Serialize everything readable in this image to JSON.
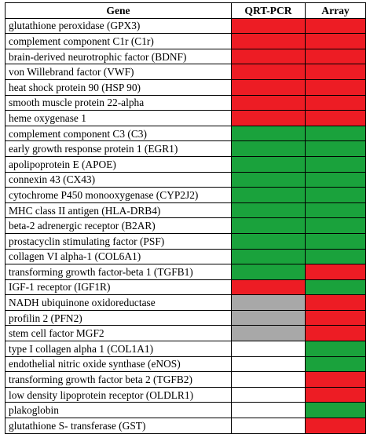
{
  "headers": {
    "gene": "Gene",
    "qrt": "QRT-PCR",
    "array": "Array"
  },
  "colors": {
    "red": "#ed1c24",
    "green": "#1aa23c",
    "gray": "#a8a8a8",
    "white": "#ffffff"
  },
  "rows": [
    {
      "gene": "glutathione peroxidase (GPX3)",
      "qrt": "red",
      "array": "red"
    },
    {
      "gene": "complement component C1r (C1r)",
      "qrt": "red",
      "array": "red"
    },
    {
      "gene": "brain-derived neurotrophic factor (BDNF)",
      "qrt": "red",
      "array": "red"
    },
    {
      "gene": "von Willebrand factor (VWF)",
      "qrt": "red",
      "array": "red"
    },
    {
      "gene": "heat shock protein 90 (HSP 90)",
      "qrt": "red",
      "array": "red"
    },
    {
      "gene": "smooth muscle protein 22-alpha",
      "qrt": "red",
      "array": "red"
    },
    {
      "gene": "heme oxygenase 1",
      "qrt": "red",
      "array": "red"
    },
    {
      "gene": "complement component C3 (C3)",
      "qrt": "green",
      "array": "green"
    },
    {
      "gene": "early growth response protein 1 (EGR1)",
      "qrt": "green",
      "array": "green"
    },
    {
      "gene": "apolipoprotein E (APOE)",
      "qrt": "green",
      "array": "green"
    },
    {
      "gene": "connexin 43 (CX43)",
      "qrt": "green",
      "array": "green"
    },
    {
      "gene": "cytochrome P450 monooxygenase (CYP2J2)",
      "qrt": "green",
      "array": "green"
    },
    {
      "gene": "MHC class II antigen (HLA-DRB4)",
      "qrt": "green",
      "array": "green"
    },
    {
      "gene": "beta-2 adrenergic receptor (B2AR)",
      "qrt": "green",
      "array": "green"
    },
    {
      "gene": "prostacyclin stimulating factor (PSF)",
      "qrt": "green",
      "array": "green"
    },
    {
      "gene": "collagen VI alpha-1 (COL6A1)",
      "qrt": "green",
      "array": "green"
    },
    {
      "gene": "transforming growth factor-beta 1 (TGFB1)",
      "qrt": "green",
      "array": "red"
    },
    {
      "gene": "IGF-1 receptor (IGF1R)",
      "qrt": "red",
      "array": "green"
    },
    {
      "gene": "NADH ubiquinone oxidoreductase",
      "qrt": "gray",
      "array": "red"
    },
    {
      "gene": "profilin 2 (PFN2)",
      "qrt": "gray",
      "array": "red"
    },
    {
      "gene": "stem cell factor MGF2",
      "qrt": "gray",
      "array": "red"
    },
    {
      "gene": "type I collagen alpha 1 (COL1A1)",
      "qrt": "white",
      "array": "green"
    },
    {
      "gene": "endothelial nitric oxide synthase (eNOS)",
      "qrt": "white",
      "array": "green"
    },
    {
      "gene": "transforming growth factor beta 2 (TGFB2)",
      "qrt": "white",
      "array": "red"
    },
    {
      "gene": "low density lipoprotein receptor (OLDLR1)",
      "qrt": "white",
      "array": "red"
    },
    {
      "gene": "plakoglobin",
      "qrt": "white",
      "array": "green"
    },
    {
      "gene": "glutathione S- transferase (GST)",
      "qrt": "white",
      "array": "red"
    }
  ]
}
